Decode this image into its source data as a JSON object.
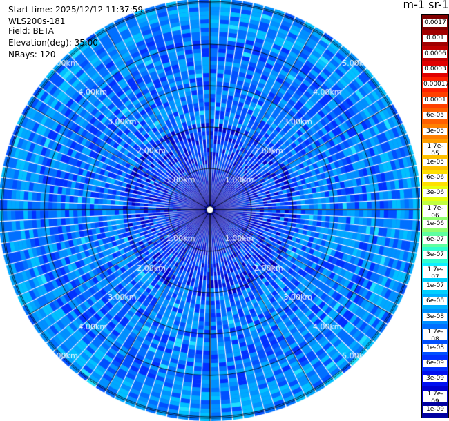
{
  "header": {
    "start_time": "Start time: 2025/12/12 11:37:59",
    "instrument": "WLS200s-181",
    "field": "Field: BETA",
    "elevation": "Elevation(deg): 35.00",
    "nrays": "NRays: 120"
  },
  "units_label": "m-1 sr-1",
  "range_rings": [
    "1.00km",
    "2.00km",
    "3.00km",
    "4.00km",
    "5.00km"
  ],
  "colorbar": {
    "ticks": [
      "0.0017",
      "0.001",
      "0.0006",
      "0.0003",
      "0.00017",
      "0.0001",
      "6e-05",
      "3e-05",
      "1.7e-05",
      "1e-05",
      "6e-06",
      "3e-06",
      "1.7e-06",
      "1e-06",
      "6e-07",
      "3e-07",
      "1.7e-07",
      "1e-07",
      "6e-08",
      "3e-08",
      "1.7e-08",
      "1e-08",
      "6e-09",
      "3e-09",
      "1.7e-09",
      "1e-09"
    ],
    "colors": [
      "#800000",
      "#a00000",
      "#c00000",
      "#e00000",
      "#ff2000",
      "#ff4000",
      "#ff6000",
      "#ff8000",
      "#ffa000",
      "#ffc000",
      "#ffe000",
      "#e8ff10",
      "#c0ff40",
      "#90ff70",
      "#60ffa0",
      "#30ffd0",
      "#10f0ff",
      "#00d0ff",
      "#00b0ff",
      "#0090ff",
      "#0070ff",
      "#0050ff",
      "#0030ff",
      "#0010f0",
      "#0000d0",
      "#0000a0"
    ]
  }
}
